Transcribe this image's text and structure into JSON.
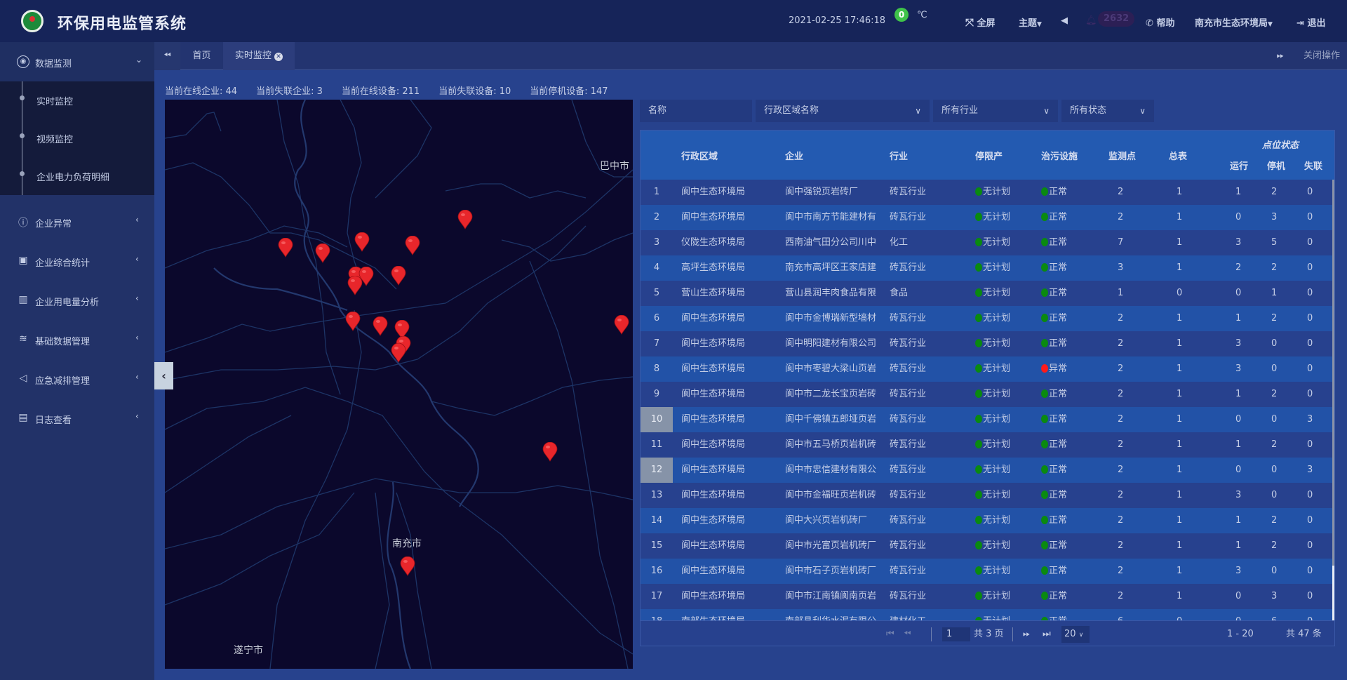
{
  "header": {
    "title": "环保用电监管系统",
    "datetime": "2021-02-25  17:46:18",
    "temperature": "0",
    "temp_unit": "℃",
    "fullscreen": "全屏",
    "theme": "主题",
    "notify_count": "2632",
    "help": "帮助",
    "org": "南充市生态环境局",
    "logout": "退出"
  },
  "sidebar": {
    "top": {
      "label": "数据监测",
      "icon": "droplet-icon"
    },
    "sub": [
      "实时监控",
      "视频监控",
      "企业电力负荷明细"
    ],
    "items": [
      {
        "label": "企业异常",
        "icon": "alert-circle-icon"
      },
      {
        "label": "企业综合统计",
        "icon": "presentation-icon"
      },
      {
        "label": "企业用电量分析",
        "icon": "bar-chart-icon"
      },
      {
        "label": "基础数据管理",
        "icon": "layers-icon"
      },
      {
        "label": "应急减排管理",
        "icon": "megaphone-icon"
      },
      {
        "label": "日志查看",
        "icon": "log-file-icon"
      }
    ]
  },
  "tabs": {
    "home": "首页",
    "active": "实时监控",
    "close_ops": "关闭操作"
  },
  "stats": [
    "当前在线企业: 44",
    "当前失联企业: 3",
    "当前在线设备: 211",
    "当前失联设备: 10",
    "当前停机设备: 147"
  ],
  "map": {
    "labels": [
      "巴中市",
      "南充市",
      "遂宁市"
    ],
    "marker_color": "#e8262b"
  },
  "filters": {
    "name_placeholder": "名称",
    "region": "行政区域名称",
    "industry": "所有行业",
    "status": "所有状态"
  },
  "table": {
    "headers": {
      "region": "行政区域",
      "company": "企业",
      "industry": "行业",
      "limit": "停限产",
      "facility": "治污设施",
      "points": "监测点",
      "meter": "总表",
      "point_status": "点位状态",
      "run": "运行",
      "stop": "停机",
      "lost": "失联"
    },
    "status_colors": {
      "ok": "#0a8a10",
      "error": "#ff1a1a"
    },
    "rows": [
      [
        "1",
        "阆中生态环境局",
        "阆中强锐页岩砖厂",
        "砖瓦行业",
        "无计划",
        "正常",
        "2",
        "1",
        "1",
        "2",
        "0"
      ],
      [
        "2",
        "阆中生态环境局",
        "阆中市南方节能建材有",
        "砖瓦行业",
        "无计划",
        "正常",
        "2",
        "1",
        "0",
        "3",
        "0"
      ],
      [
        "3",
        "仪陇生态环境局",
        "西南油气田分公司川中",
        "化工",
        "无计划",
        "正常",
        "7",
        "1",
        "3",
        "5",
        "0"
      ],
      [
        "4",
        "高坪生态环境局",
        "南充市高坪区王家店建",
        "砖瓦行业",
        "无计划",
        "正常",
        "3",
        "1",
        "2",
        "2",
        "0"
      ],
      [
        "5",
        "营山生态环境局",
        "营山县润丰肉食品有限",
        "食品",
        "无计划",
        "正常",
        "1",
        "0",
        "0",
        "1",
        "0"
      ],
      [
        "6",
        "阆中生态环境局",
        "阆中市金博瑞新型墙材",
        "砖瓦行业",
        "无计划",
        "正常",
        "2",
        "1",
        "1",
        "2",
        "0"
      ],
      [
        "7",
        "阆中生态环境局",
        "阆中明阳建材有限公司",
        "砖瓦行业",
        "无计划",
        "正常",
        "2",
        "1",
        "3",
        "0",
        "0"
      ],
      [
        "8",
        "阆中生态环境局",
        "阆中市枣碧大梁山页岩",
        "砖瓦行业",
        "无计划",
        "异常",
        "2",
        "1",
        "3",
        "0",
        "0"
      ],
      [
        "9",
        "阆中生态环境局",
        "阆中市二龙长宝页岩砖",
        "砖瓦行业",
        "无计划",
        "正常",
        "2",
        "1",
        "1",
        "2",
        "0"
      ],
      [
        "10",
        "阆中生态环境局",
        "阆中千佛镇五郎垭页岩",
        "砖瓦行业",
        "无计划",
        "正常",
        "2",
        "1",
        "0",
        "0",
        "3"
      ],
      [
        "11",
        "阆中生态环境局",
        "阆中市五马桥页岩机砖",
        "砖瓦行业",
        "无计划",
        "正常",
        "2",
        "1",
        "1",
        "2",
        "0"
      ],
      [
        "12",
        "阆中生态环境局",
        "阆中市忠信建材有限公",
        "砖瓦行业",
        "无计划",
        "正常",
        "2",
        "1",
        "0",
        "0",
        "3"
      ],
      [
        "13",
        "阆中生态环境局",
        "阆中市金福旺页岩机砖",
        "砖瓦行业",
        "无计划",
        "正常",
        "2",
        "1",
        "3",
        "0",
        "0"
      ],
      [
        "14",
        "阆中生态环境局",
        "阆中大兴页岩机砖厂",
        "砖瓦行业",
        "无计划",
        "正常",
        "2",
        "1",
        "1",
        "2",
        "0"
      ],
      [
        "15",
        "阆中生态环境局",
        "阆中市光富页岩机砖厂",
        "砖瓦行业",
        "无计划",
        "正常",
        "2",
        "1",
        "1",
        "2",
        "0"
      ],
      [
        "16",
        "阆中生态环境局",
        "阆中市石子页岩机砖厂",
        "砖瓦行业",
        "无计划",
        "正常",
        "2",
        "1",
        "3",
        "0",
        "0"
      ],
      [
        "17",
        "阆中生态环境局",
        "阆中市江南镇阆南页岩",
        "砖瓦行业",
        "无计划",
        "正常",
        "2",
        "1",
        "0",
        "3",
        "0"
      ],
      [
        "18",
        "南部生态环境局",
        "南部县利华水泥有限公",
        "建材化工",
        "无计划",
        "正常",
        "6",
        "0",
        "0",
        "6",
        "0"
      ]
    ],
    "selected_rows": [
      "10",
      "12"
    ]
  },
  "pager": {
    "page": "1",
    "total_pages": "共 3 页",
    "page_size": "20",
    "range": "1 - 20",
    "total": "共 47 条"
  }
}
